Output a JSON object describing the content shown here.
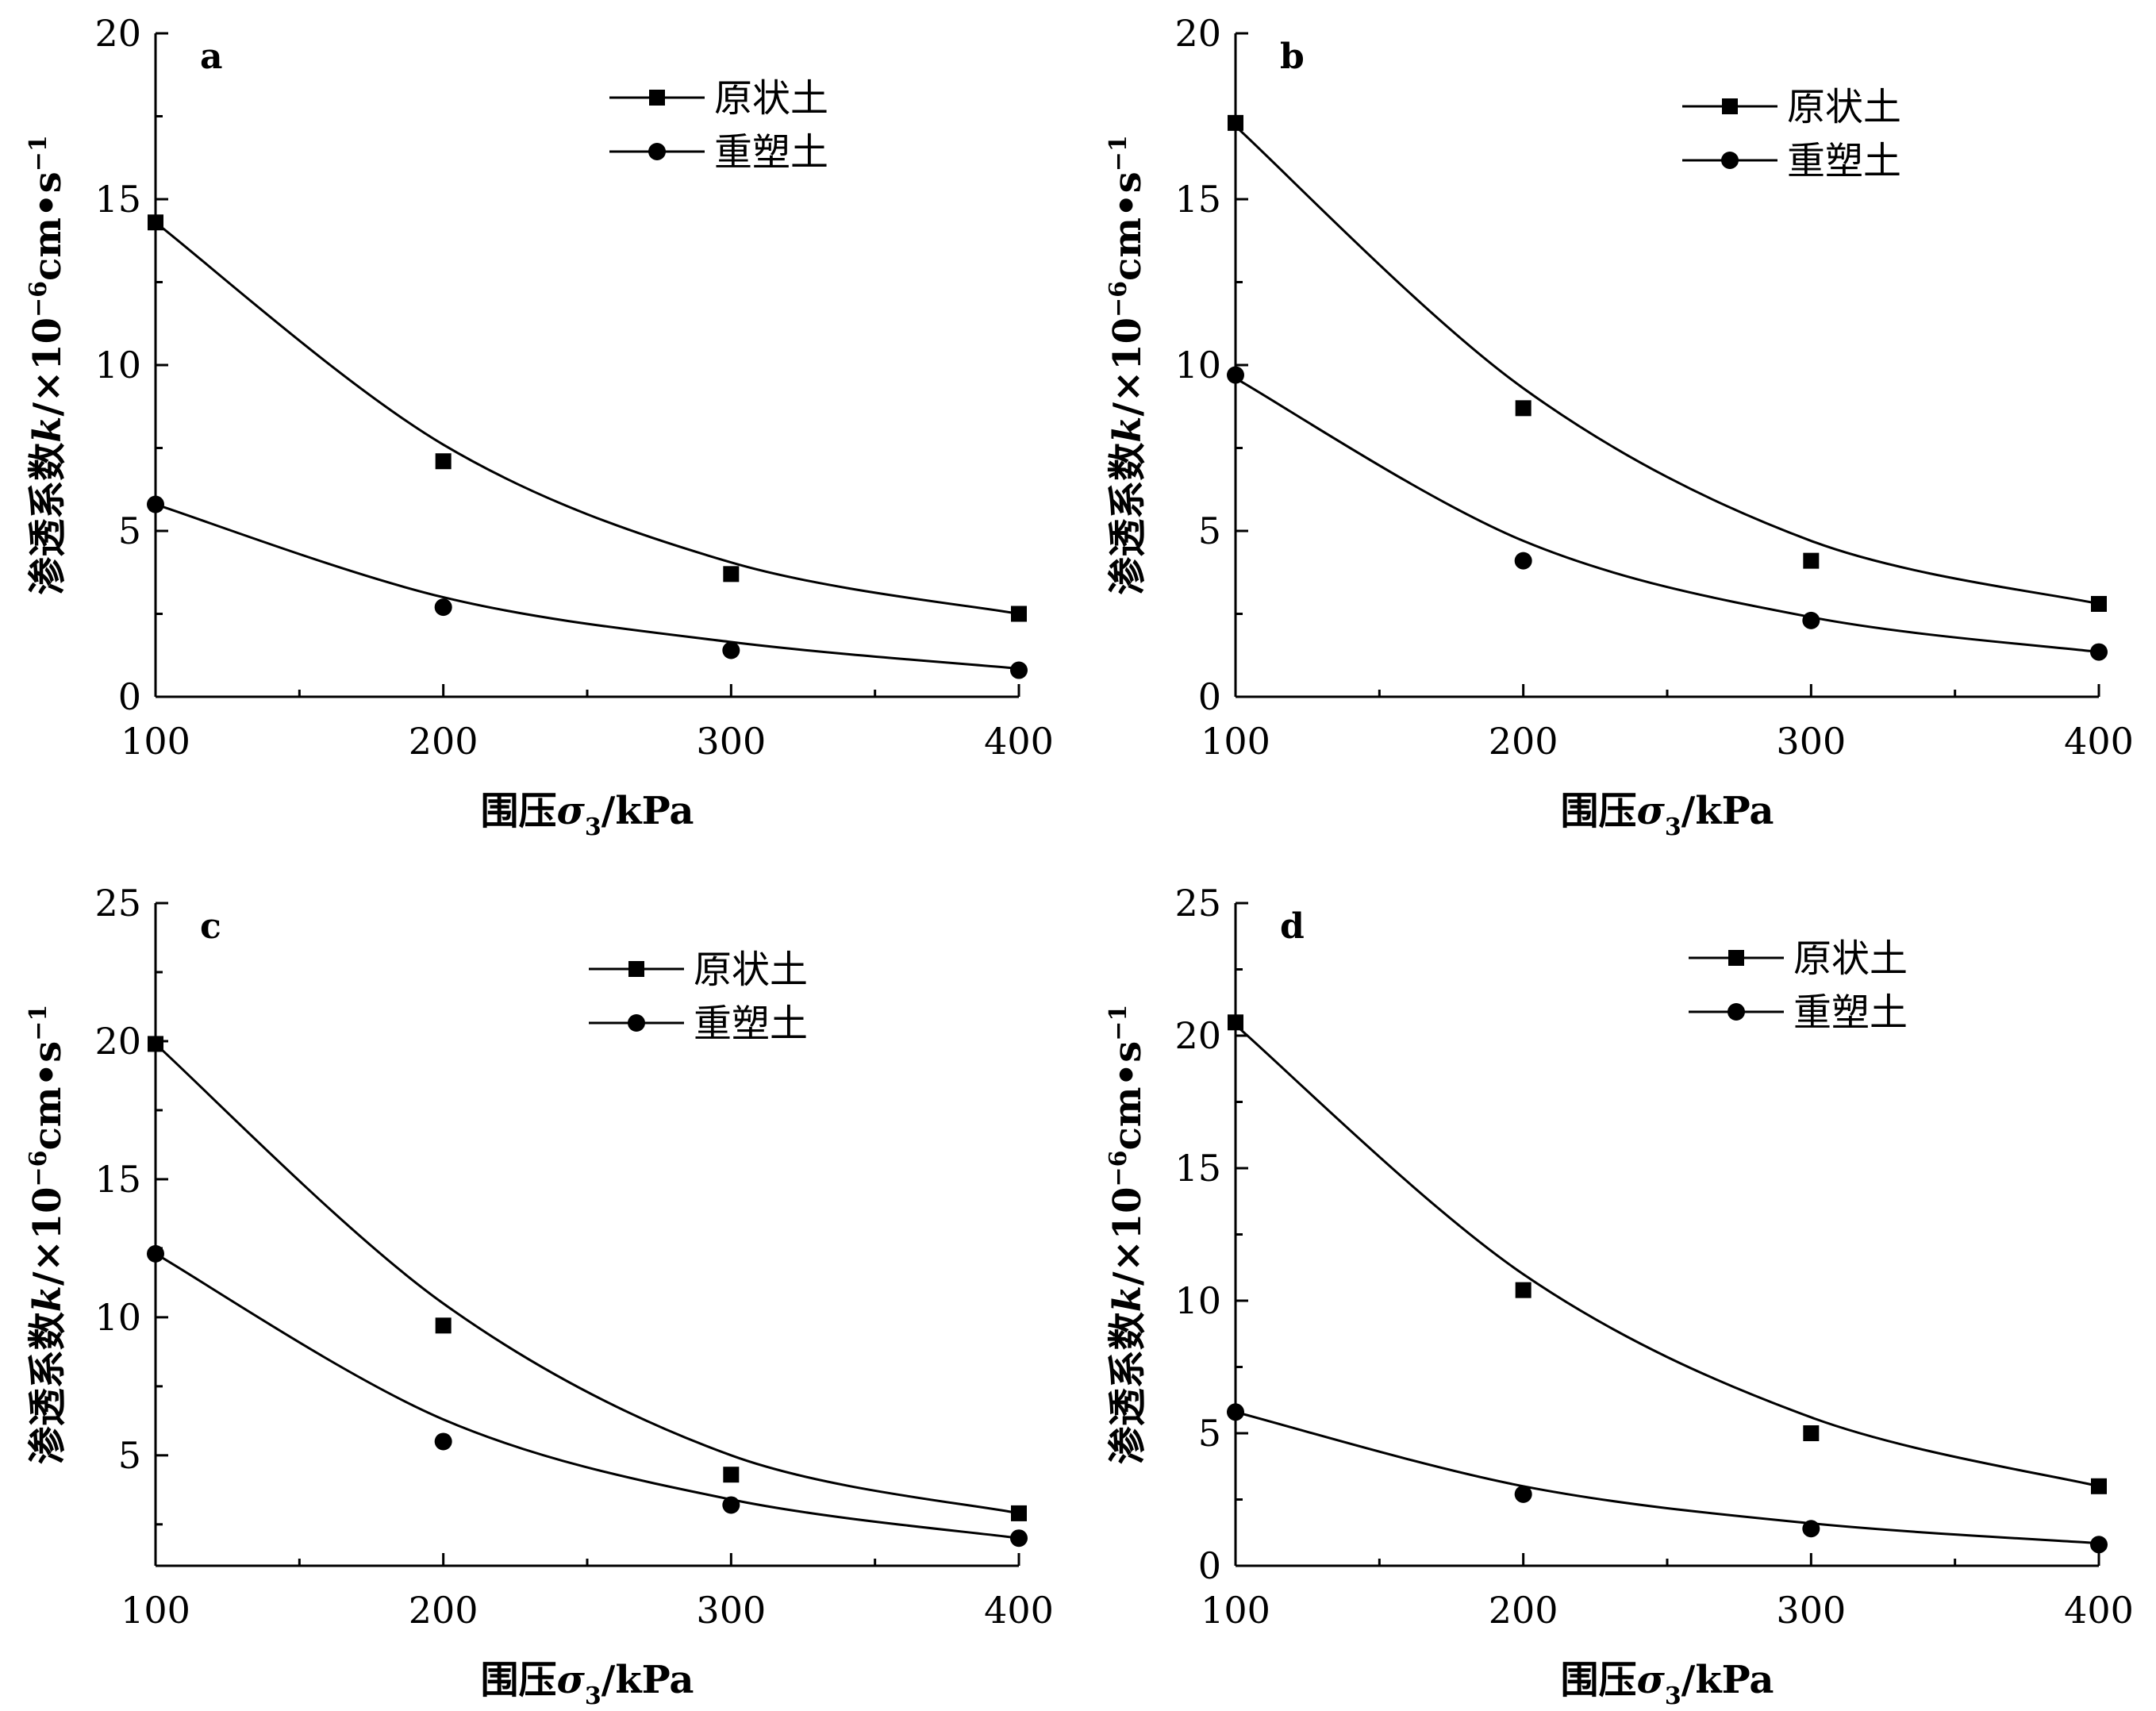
{
  "legend": {
    "undisturbed": "原状土",
    "remolded": "重塑土"
  },
  "x_axis_title": {
    "main": "围压",
    "symbol": "σ",
    "subscript": "3",
    "unit": "/kPa"
  },
  "y_axis_title": {
    "main": "渗透系数",
    "symbol": "k",
    "unit_prefix": "/×10",
    "exp1": "−6",
    "unit_mid": "cm•s",
    "exp2": "−1"
  },
  "colors": {
    "ink": "#000000",
    "background": "#ffffff"
  },
  "chart_data": [
    {
      "label": "a",
      "type": "scatter",
      "x": [
        100,
        200,
        300,
        400
      ],
      "xlim": [
        100,
        400
      ],
      "ylim": [
        0,
        20
      ],
      "xticks": [
        "100",
        "200",
        "300",
        "400"
      ],
      "yticks": [
        "0",
        "5",
        "10",
        "15",
        "20"
      ],
      "series": [
        {
          "name": "原状土",
          "marker": "square",
          "values": [
            14.3,
            7.1,
            3.7,
            2.5
          ],
          "fit": [
            14.3,
            7.6,
            4.05,
            2.5
          ]
        },
        {
          "name": "重塑土",
          "marker": "circle",
          "values": [
            5.8,
            2.7,
            1.4,
            0.8
          ],
          "fit": [
            5.8,
            3.0,
            1.65,
            0.85
          ]
        }
      ]
    },
    {
      "label": "b",
      "type": "scatter",
      "x": [
        100,
        200,
        300,
        400
      ],
      "xlim": [
        100,
        400
      ],
      "ylim": [
        0,
        20
      ],
      "xticks": [
        "100",
        "200",
        "300",
        "400"
      ],
      "yticks": [
        "0",
        "5",
        "10",
        "15",
        "20"
      ],
      "series": [
        {
          "name": "原状土",
          "marker": "square",
          "values": [
            17.3,
            8.7,
            4.1,
            2.8
          ],
          "fit": [
            17.2,
            9.3,
            4.7,
            2.8
          ]
        },
        {
          "name": "重塑土",
          "marker": "circle",
          "values": [
            9.7,
            4.1,
            2.3,
            1.35
          ],
          "fit": [
            9.6,
            4.7,
            2.4,
            1.35
          ]
        }
      ]
    },
    {
      "label": "c",
      "type": "scatter",
      "x": [
        100,
        200,
        300,
        400
      ],
      "xlim": [
        100,
        400
      ],
      "ylim": [
        1,
        25
      ],
      "xticks": [
        "100",
        "200",
        "300",
        "400"
      ],
      "yticks": [
        "5",
        "10",
        "15",
        "20",
        "25"
      ],
      "series": [
        {
          "name": "原状土",
          "marker": "square",
          "values": [
            19.9,
            9.7,
            4.3,
            2.9
          ],
          "fit": [
            19.9,
            10.5,
            5.0,
            2.9
          ]
        },
        {
          "name": "重塑土",
          "marker": "circle",
          "values": [
            12.3,
            5.5,
            3.2,
            2.0
          ],
          "fit": [
            12.3,
            6.3,
            3.4,
            2.0
          ]
        }
      ]
    },
    {
      "label": "d",
      "type": "scatter",
      "x": [
        100,
        200,
        300,
        400
      ],
      "xlim": [
        100,
        400
      ],
      "ylim": [
        0,
        25
      ],
      "xticks": [
        "100",
        "200",
        "300",
        "400"
      ],
      "yticks": [
        "0",
        "5",
        "10",
        "15",
        "20",
        "25"
      ],
      "series": [
        {
          "name": "原状土",
          "marker": "square",
          "values": [
            20.5,
            10.4,
            5.0,
            3.0
          ],
          "fit": [
            20.4,
            11.0,
            5.6,
            3.0
          ]
        },
        {
          "name": "重塑土",
          "marker": "circle",
          "values": [
            5.8,
            2.7,
            1.4,
            0.8
          ],
          "fit": [
            5.8,
            3.0,
            1.6,
            0.85
          ]
        }
      ]
    }
  ]
}
